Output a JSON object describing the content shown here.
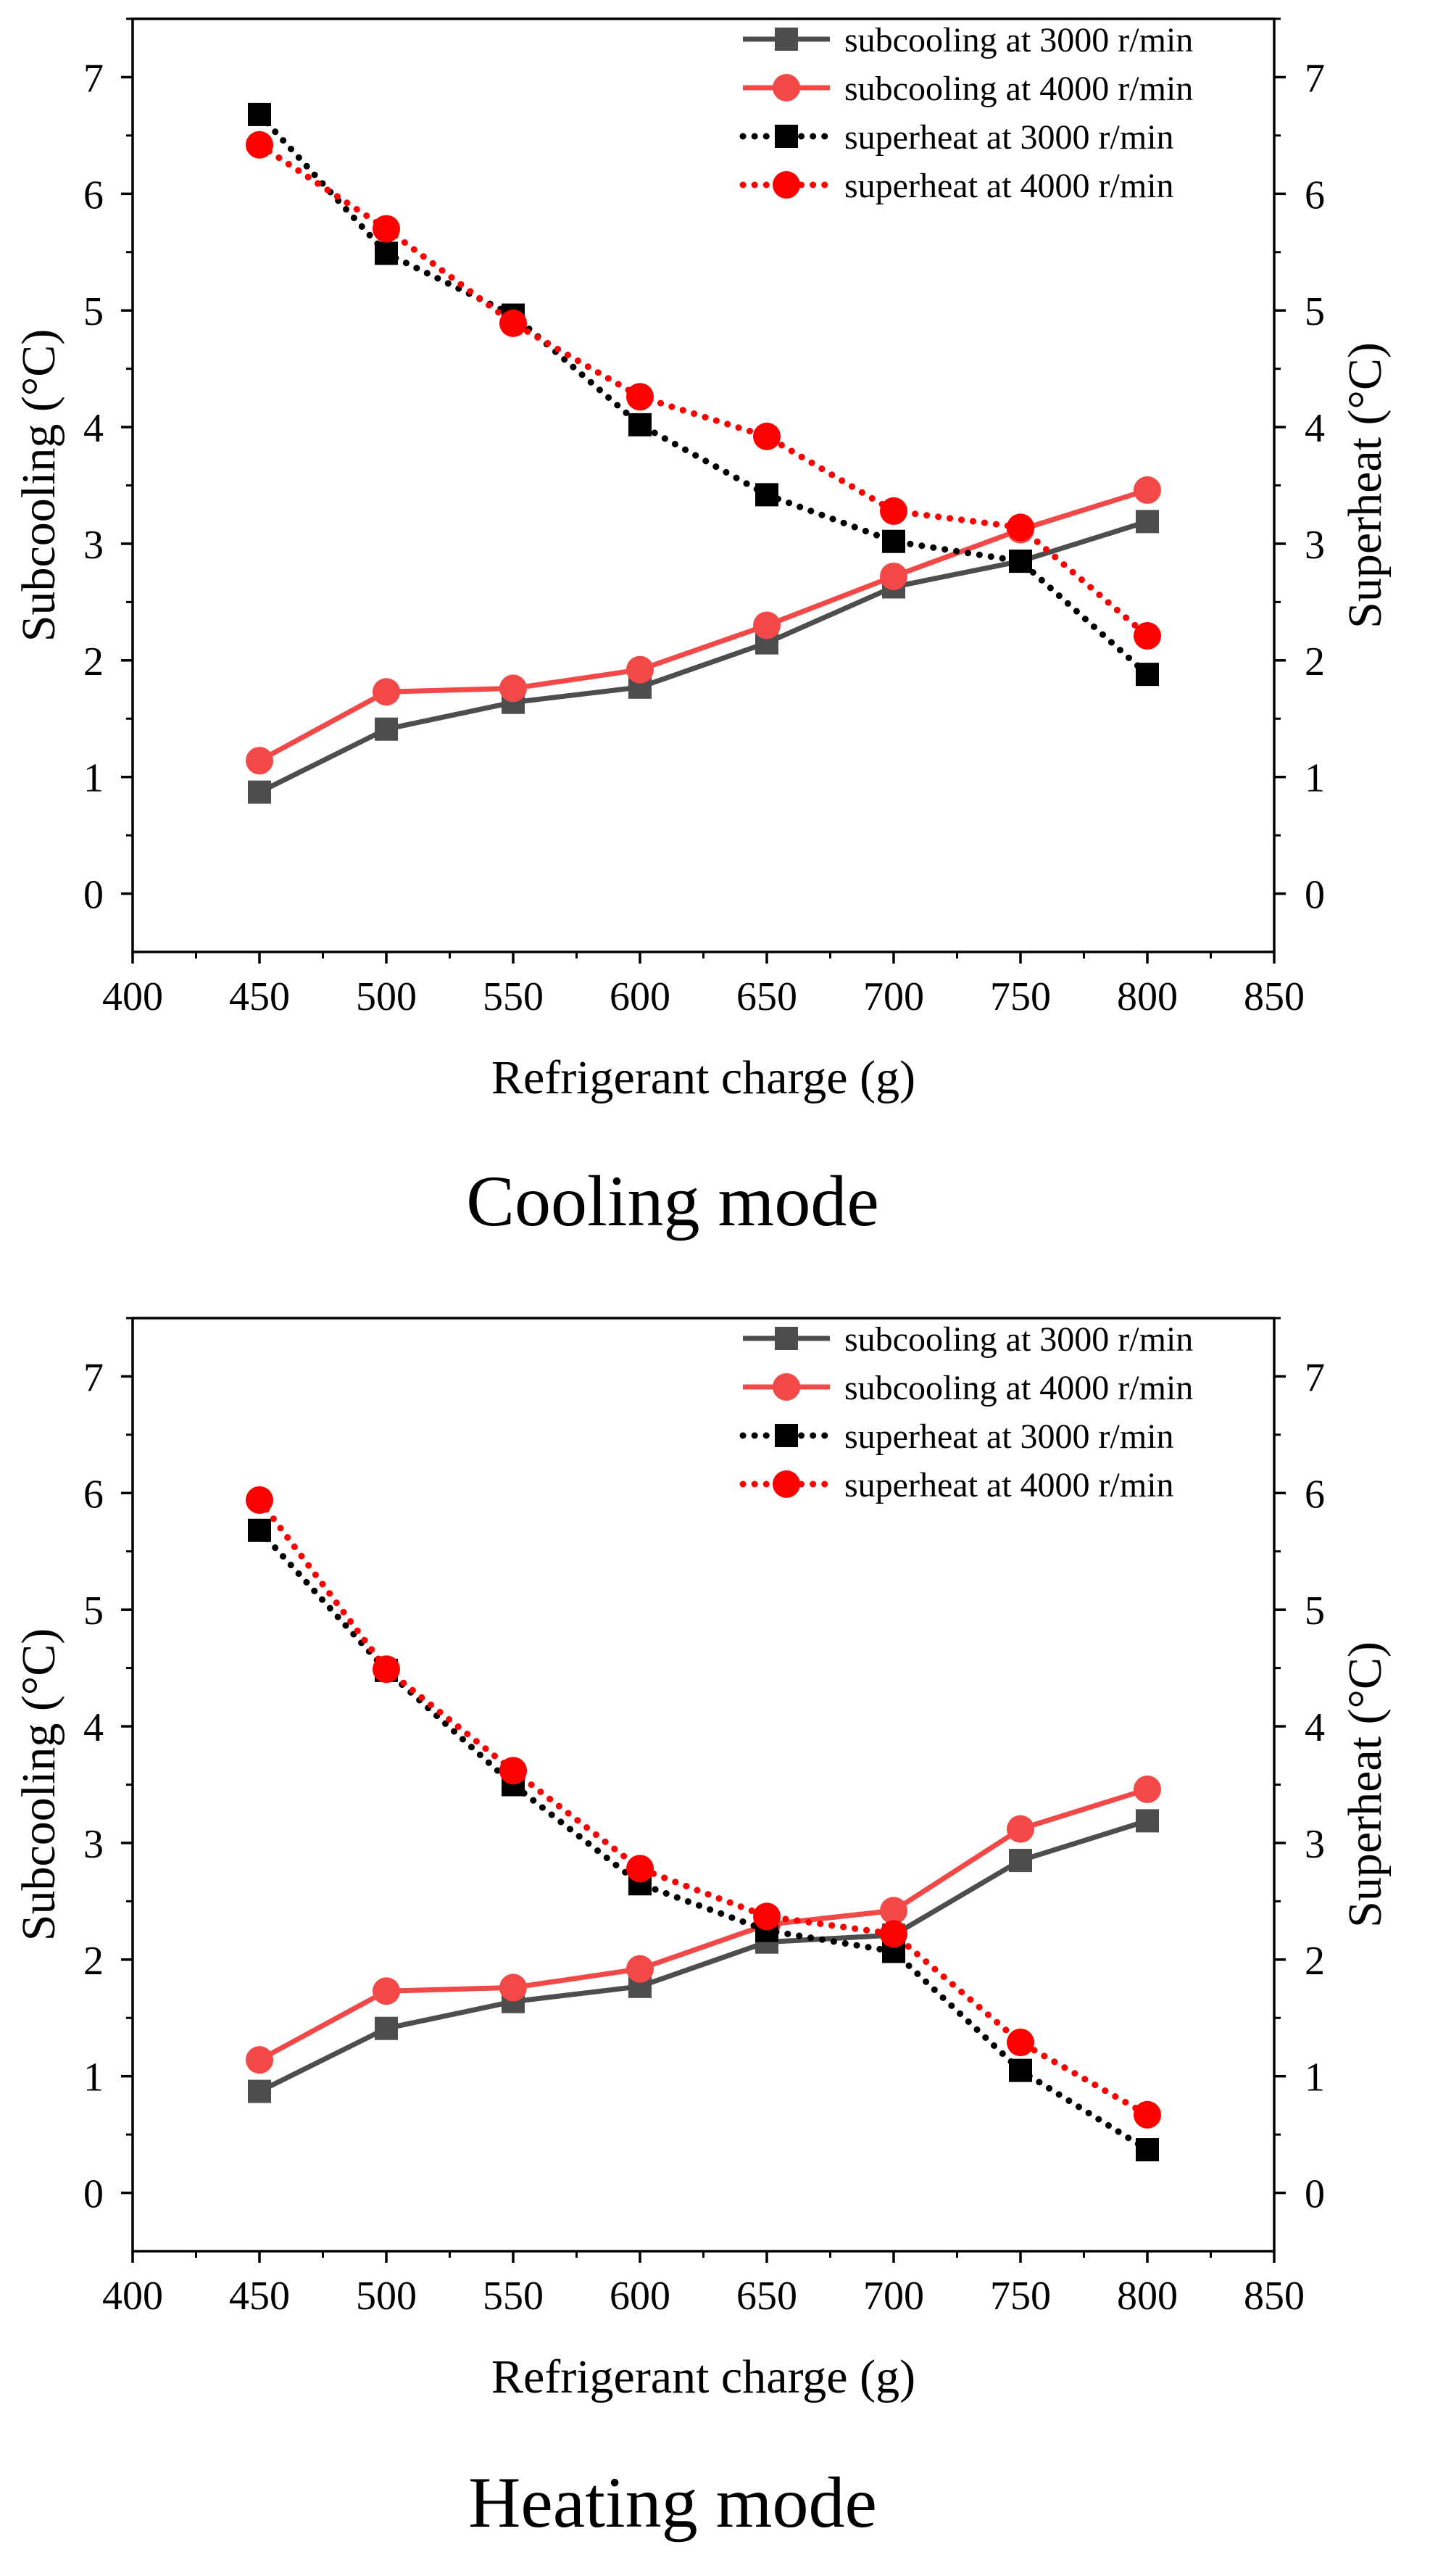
{
  "colors": {
    "gray": "#4d4d4d",
    "red": "#f24848",
    "black": "#000000",
    "dotRed": "#ff0000"
  },
  "chart_data": [
    {
      "type": "line",
      "caption": "Cooling mode",
      "title": "",
      "xlabel": "Refrigerant charge (g)",
      "ylabel": "Subcooling (°C)",
      "y2label": "Superheat (°C)",
      "xlim": [
        400,
        850
      ],
      "ylim": [
        -0.5,
        7.5
      ],
      "y2lim": [
        -0.5,
        7.5
      ],
      "xticks": [
        400,
        450,
        500,
        550,
        600,
        650,
        700,
        750,
        800,
        850
      ],
      "yticks": [
        0,
        1,
        2,
        3,
        4,
        5,
        6,
        7
      ],
      "y2ticks": [
        0,
        1,
        2,
        3,
        4,
        5,
        6,
        7
      ],
      "legend_position": "top-right",
      "x": [
        450,
        500,
        550,
        600,
        650,
        700,
        750,
        800
      ],
      "series": [
        {
          "name": "subcooling at 3000 r/min",
          "axis": "left",
          "style": "solid",
          "marker": "square",
          "color": "#4d4d4d",
          "values": [
            0.87,
            1.41,
            1.64,
            1.77,
            2.15,
            2.63,
            2.85,
            3.19
          ]
        },
        {
          "name": "subcooling at 4000 r/min",
          "axis": "left",
          "style": "solid",
          "marker": "circle",
          "color": "#f24848",
          "values": [
            1.14,
            1.73,
            1.76,
            1.92,
            2.3,
            2.72,
            3.12,
            3.46
          ]
        },
        {
          "name": "superheat at 3000 r/min",
          "axis": "right",
          "style": "dotted",
          "marker": "square",
          "color": "#000000",
          "values": [
            6.68,
            5.49,
            4.96,
            4.02,
            3.42,
            3.02,
            2.85,
            1.88
          ]
        },
        {
          "name": "superheat at 4000 r/min",
          "axis": "right",
          "style": "dotted",
          "marker": "circle",
          "color": "#ff0000",
          "values": [
            6.42,
            5.7,
            4.89,
            4.26,
            3.92,
            3.28,
            3.14,
            2.21
          ]
        }
      ]
    },
    {
      "type": "line",
      "caption": "Heating mode",
      "title": "",
      "xlabel": "Refrigerant charge (g)",
      "ylabel": "Subcooling (°C)",
      "y2label": "Superheat (°C)",
      "xlim": [
        400,
        850
      ],
      "ylim": [
        -0.5,
        7.5
      ],
      "y2lim": [
        -0.5,
        7.5
      ],
      "xticks": [
        400,
        450,
        500,
        550,
        600,
        650,
        700,
        750,
        800,
        850
      ],
      "yticks": [
        0,
        1,
        2,
        3,
        4,
        5,
        6,
        7
      ],
      "y2ticks": [
        0,
        1,
        2,
        3,
        4,
        5,
        6,
        7
      ],
      "legend_position": "top-right",
      "x": [
        450,
        500,
        550,
        600,
        650,
        700,
        750,
        800
      ],
      "series": [
        {
          "name": "subcooling at 3000 r/min",
          "axis": "left",
          "style": "solid",
          "marker": "square",
          "color": "#4d4d4d",
          "values": [
            0.87,
            1.41,
            1.64,
            1.77,
            2.15,
            2.21,
            2.85,
            3.19
          ]
        },
        {
          "name": "subcooling at 4000 r/min",
          "axis": "left",
          "style": "solid",
          "marker": "circle",
          "color": "#f24848",
          "values": [
            1.14,
            1.73,
            1.76,
            1.92,
            2.3,
            2.42,
            3.12,
            3.46
          ]
        },
        {
          "name": "superheat at 3000 r/min",
          "axis": "right",
          "style": "dotted",
          "marker": "square",
          "color": "#000000",
          "values": [
            5.68,
            4.48,
            3.5,
            2.65,
            2.25,
            2.07,
            1.05,
            0.37
          ]
        },
        {
          "name": "superheat at 4000 r/min",
          "axis": "right",
          "style": "dotted",
          "marker": "circle",
          "color": "#ff0000",
          "values": [
            5.94,
            4.49,
            3.62,
            2.78,
            2.37,
            2.22,
            1.29,
            0.67
          ]
        }
      ]
    }
  ]
}
